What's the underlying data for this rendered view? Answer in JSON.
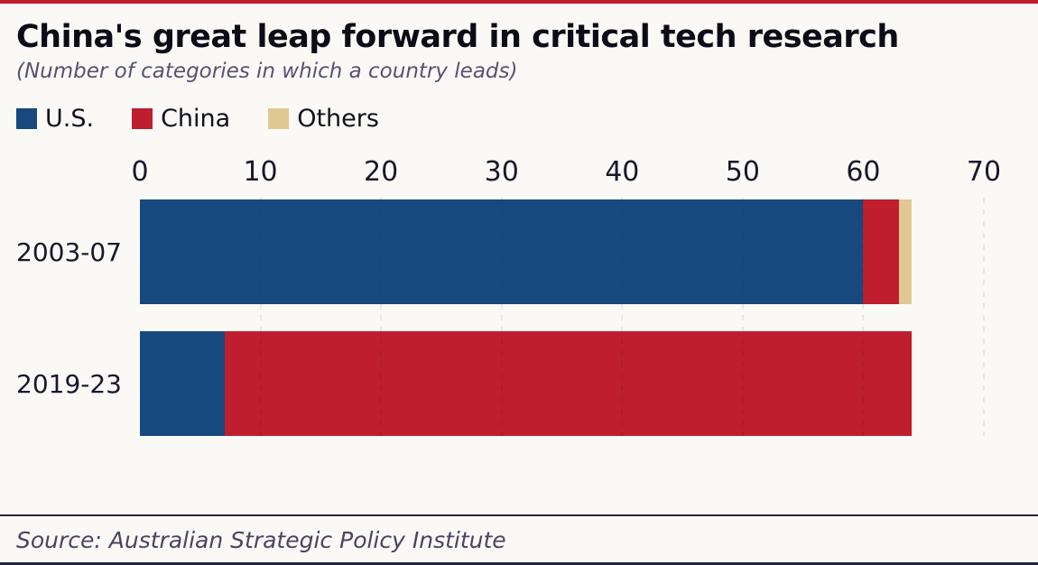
{
  "title": "China's great leap forward in critical tech research",
  "subtitle": "(Number of categories in which a country leads)",
  "source": "Source: Australian Strategic Policy Institute",
  "colors": {
    "us": "#17497E",
    "china": "#BE1E2D",
    "others": "#DFC892",
    "top_rule": "#BE1E2D",
    "background": "#FBF9F6"
  },
  "chart_data": {
    "type": "bar",
    "orientation": "horizontal",
    "stacked": true,
    "title": "China's great leap forward in critical tech research",
    "subtitle": "(Number of categories in which a country leads)",
    "categories": [
      "2003-07",
      "2019-23"
    ],
    "series": [
      {
        "name": "U.S.",
        "color": "#17497E",
        "values": [
          60,
          7
        ]
      },
      {
        "name": "China",
        "color": "#BE1E2D",
        "values": [
          3,
          57
        ]
      },
      {
        "name": "Others",
        "color": "#DFC892",
        "values": [
          1,
          0
        ]
      }
    ],
    "totals": [
      64,
      64
    ],
    "xlim": [
      0,
      70
    ],
    "xticks": [
      0,
      10,
      20,
      30,
      40,
      50,
      60,
      70
    ],
    "legend_position": "top",
    "grid": "dashed-vertical",
    "source": "Australian Strategic Policy Institute"
  }
}
